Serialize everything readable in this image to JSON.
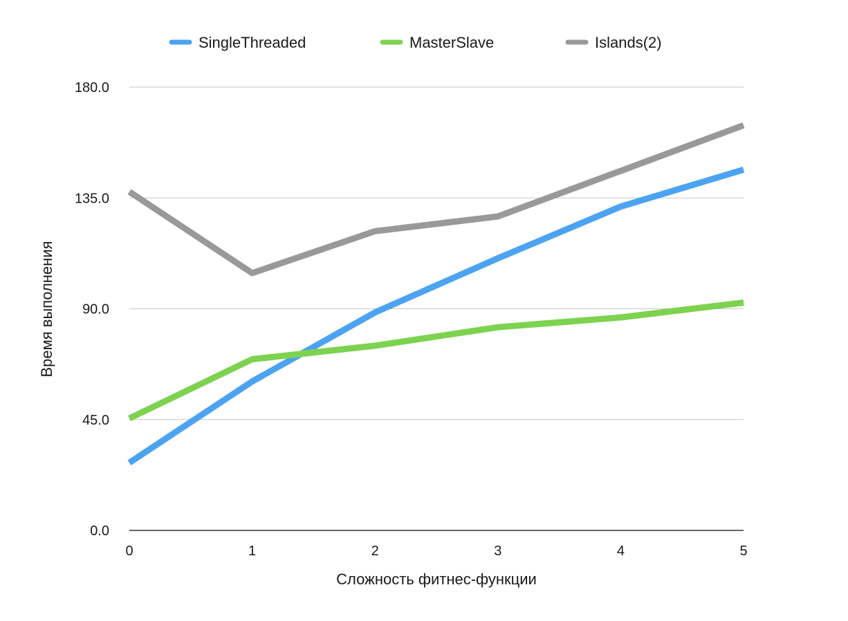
{
  "chart_data": {
    "type": "line",
    "xlabel": "Сложность фитнес-функции",
    "ylabel": "Время выполнения",
    "x": [
      0,
      1,
      2,
      3,
      4,
      5
    ],
    "x_tick_labels": [
      "0",
      "1",
      "2",
      "3",
      "4",
      "5"
    ],
    "xlim": [
      0,
      5
    ],
    "ylim": [
      0,
      180
    ],
    "y_ticks": [
      0,
      45,
      90,
      135,
      180
    ],
    "y_tick_labels": [
      "0.0",
      "45.0",
      "90.0",
      "135.0",
      "180.0"
    ],
    "grid": "horizontal",
    "legend": "top",
    "series": [
      {
        "name": "SingleThreaded",
        "color": "#4ba3f2",
        "values": [
          27.5,
          60.5,
          88.5,
          110.5,
          131.5,
          146.5
        ]
      },
      {
        "name": "MasterSlave",
        "color": "#7dd24f",
        "values": [
          45.5,
          69.5,
          75.0,
          82.5,
          86.5,
          92.5
        ]
      },
      {
        "name": "Islands(2)",
        "color": "#999999",
        "values": [
          137.5,
          104.5,
          121.5,
          127.5,
          146.0,
          164.5
        ]
      }
    ]
  }
}
